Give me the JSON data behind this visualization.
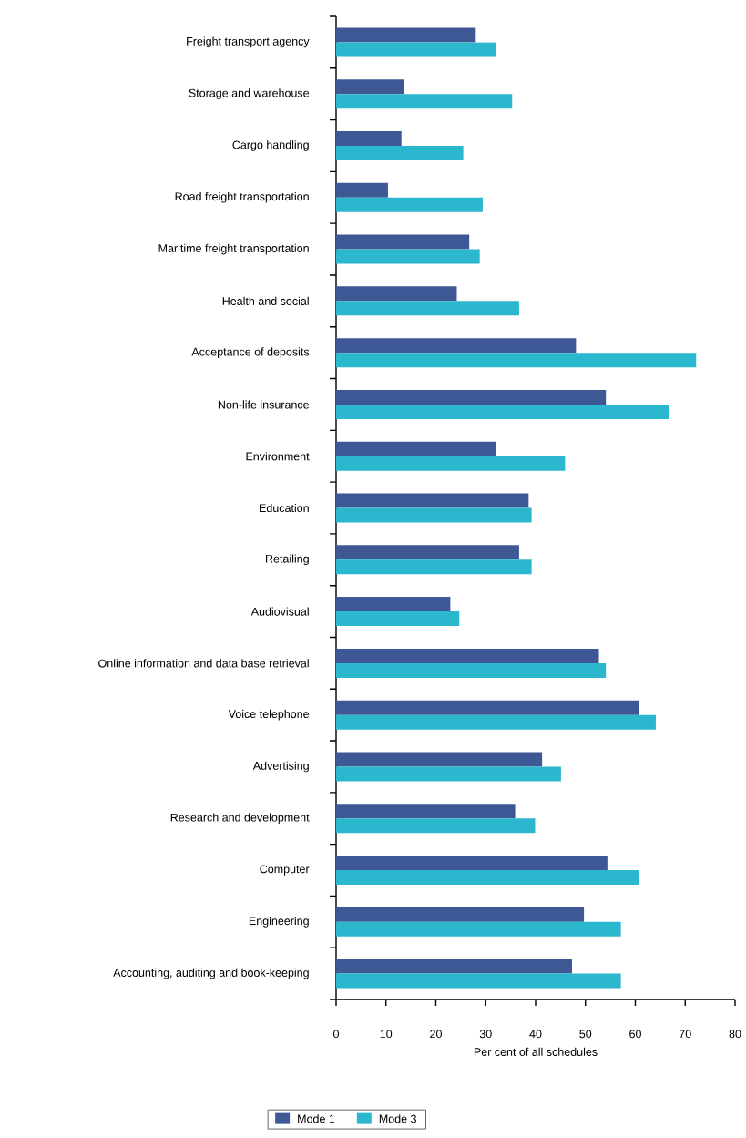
{
  "chart_data": {
    "type": "bar",
    "orientation": "horizontal",
    "xlabel": "Per cent of all schedules",
    "categories": [
      "Freight transport agency",
      "Storage and warehouse",
      "Cargo handling",
      "Road freight transportation",
      "Maritime freight transportation",
      "Health and social",
      "Acceptance of deposits",
      "Non-life insurance",
      "Environment",
      "Education",
      "Retailing",
      "Audiovisual",
      "Online information and data base retrieval",
      "Voice telephone",
      "Advertising",
      "Research and development",
      "Computer",
      "Engineering",
      "Accounting, auditing and book-keeping"
    ],
    "series": [
      {
        "name": "Mode 1",
        "color": "#3d5894",
        "values": [
          28.0,
          13.6,
          13.1,
          10.4,
          26.7,
          24.2,
          48.1,
          54.1,
          32.1,
          38.6,
          36.7,
          22.9,
          52.7,
          60.8,
          41.3,
          35.9,
          54.4,
          49.7,
          47.3
        ]
      },
      {
        "name": "Mode 3",
        "color": "#2bb7ce",
        "values": [
          32.1,
          35.3,
          25.5,
          29.4,
          28.8,
          36.7,
          72.2,
          66.8,
          45.9,
          39.2,
          39.2,
          24.7,
          54.1,
          64.1,
          45.1,
          39.9,
          60.8,
          57.1,
          57.1
        ]
      }
    ],
    "xlim": [
      0,
      80
    ],
    "xticks": [
      0,
      10,
      20,
      30,
      40,
      50,
      60,
      70,
      80
    ],
    "legend": "bottom",
    "grid": false
  }
}
